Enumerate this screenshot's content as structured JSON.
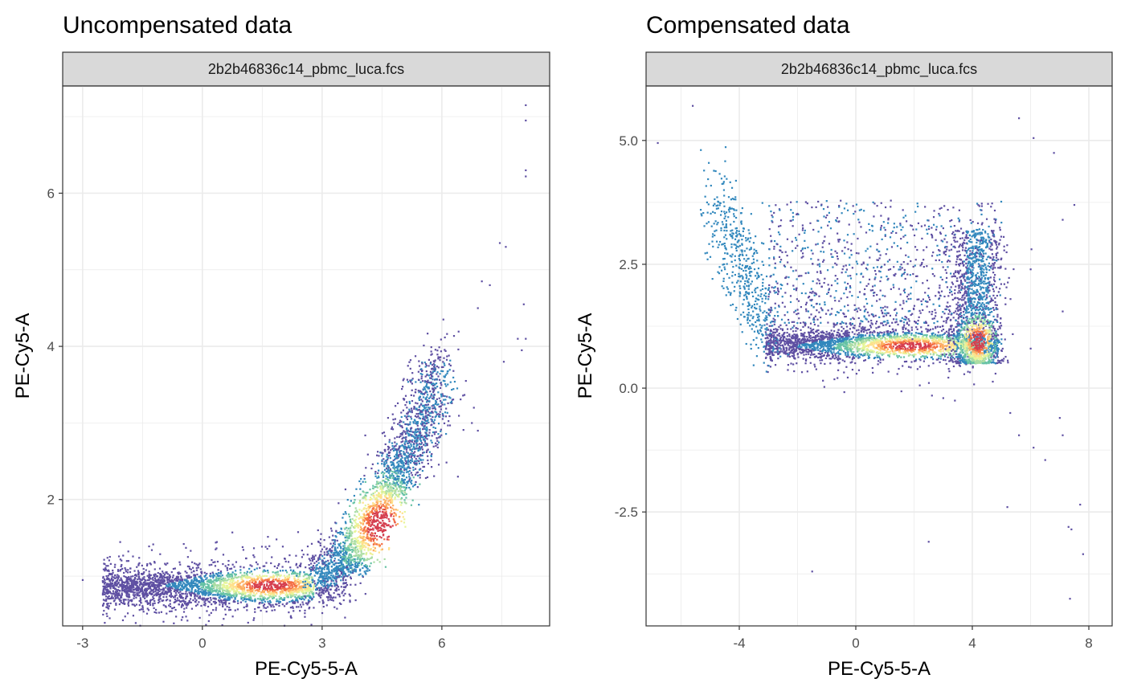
{
  "chart_data": [
    {
      "type": "scatter",
      "title": "Uncompensated data",
      "facet_label": "2b2b46836c14_pbmc_luca.fcs",
      "xlabel": "PE-Cy5-5-A",
      "ylabel": "PE-Cy5-A",
      "xlim": [
        -3.5,
        8.7
      ],
      "ylim": [
        0.35,
        7.4
      ],
      "x_ticks": [
        -3,
        0,
        3,
        6
      ],
      "x_tick_labels": [
        "-3",
        "0",
        "3",
        "6"
      ],
      "y_ticks": [
        2,
        4,
        6
      ],
      "y_tick_labels": [
        "2",
        "4",
        "6"
      ],
      "grid": true,
      "density_scale": "Spectral (purple = low, red = high)",
      "colors": [
        "#5e4fa2",
        "#3288bd",
        "#66c2a5",
        "#abdda4",
        "#e6f598",
        "#fee08b",
        "#fdae61",
        "#f46d43",
        "#d53e4f"
      ],
      "populations": [
        {
          "name": "horizontal band",
          "x_range": [
            -2.5,
            2.8
          ],
          "y_center": 0.85,
          "y_spread": 0.12,
          "peak": [
            1.7,
            0.88
          ]
        },
        {
          "name": "diagonal arm",
          "x_range": [
            2.8,
            6.0
          ],
          "y_at_start": 0.95,
          "y_at_end": 3.7,
          "peak": [
            4.5,
            1.65
          ]
        }
      ],
      "outliers": [
        {
          "x": 8.1,
          "y": 7.15
        },
        {
          "x": 8.1,
          "y": 6.95
        },
        {
          "x": 8.1,
          "y": 6.3
        },
        {
          "x": 8.1,
          "y": 6.22
        },
        {
          "x": 7.45,
          "y": 5.35
        },
        {
          "x": 7.6,
          "y": 5.3
        },
        {
          "x": 7.0,
          "y": 4.85
        },
        {
          "x": 7.2,
          "y": 4.8
        },
        {
          "x": 8.05,
          "y": 4.55
        },
        {
          "x": 6.9,
          "y": 4.5
        },
        {
          "x": 7.9,
          "y": 4.1
        },
        {
          "x": 8.1,
          "y": 4.1
        },
        {
          "x": 7.55,
          "y": 3.8
        },
        {
          "x": 8.0,
          "y": 3.95
        },
        {
          "x": 6.6,
          "y": 3.55
        },
        {
          "x": 6.8,
          "y": 3.2
        },
        {
          "x": 6.9,
          "y": 2.9
        },
        {
          "x": 6.4,
          "y": 2.3
        },
        {
          "x": 6.75,
          "y": 3.0
        },
        {
          "x": -3.0,
          "y": 0.95
        }
      ]
    },
    {
      "type": "scatter",
      "title": "Compensated data",
      "facet_label": "2b2b46836c14_pbmc_luca.fcs",
      "xlabel": "PE-Cy5-5-A",
      "ylabel": "PE-Cy5-A",
      "xlim": [
        -7.2,
        8.8
      ],
      "ylim": [
        -4.8,
        6.1
      ],
      "x_ticks": [
        -4,
        0,
        4,
        8
      ],
      "x_tick_labels": [
        "-4",
        "0",
        "4",
        "8"
      ],
      "y_ticks": [
        -2.5,
        0.0,
        2.5,
        5.0
      ],
      "y_tick_labels": [
        "-2.5",
        "0.0",
        "2.5",
        "5.0"
      ],
      "grid": true,
      "density_scale": "Spectral (purple = low, red = high)",
      "colors": [
        "#5e4fa2",
        "#3288bd",
        "#66c2a5",
        "#abdda4",
        "#e6f598",
        "#fee08b",
        "#fdae61",
        "#f46d43",
        "#d53e4f"
      ],
      "populations": [
        {
          "name": "horizontal band",
          "x_range": [
            -3.1,
            4.9
          ],
          "y_center": 0.9,
          "y_spread": 0.15,
          "peak": [
            1.9,
            0.85
          ]
        },
        {
          "name": "vertical arm",
          "x_center": 4.1,
          "y_range": [
            0.5,
            3.2
          ],
          "peak": [
            4.2,
            0.95
          ]
        },
        {
          "name": "upper-left diagonal",
          "x_range": [
            -4.8,
            -3.0
          ],
          "y_at_start": 3.8,
          "y_at_end": 1.2
        },
        {
          "name": "sparse upper cloud",
          "x_range": [
            -3.0,
            5.0
          ],
          "y_range": [
            1.3,
            3.8
          ]
        }
      ],
      "outliers": [
        {
          "x": -6.8,
          "y": 4.95
        },
        {
          "x": -5.6,
          "y": 5.7
        },
        {
          "x": 5.6,
          "y": 5.45
        },
        {
          "x": 6.1,
          "y": 5.05
        },
        {
          "x": 6.8,
          "y": 4.75
        },
        {
          "x": 7.5,
          "y": 3.7
        },
        {
          "x": 7.1,
          "y": 3.4
        },
        {
          "x": 6.0,
          "y": 2.4
        },
        {
          "x": 7.1,
          "y": 1.55
        },
        {
          "x": 6.0,
          "y": 0.8
        },
        {
          "x": 5.6,
          "y": -0.95
        },
        {
          "x": 6.1,
          "y": -1.2
        },
        {
          "x": 6.5,
          "y": -1.45
        },
        {
          "x": 7.0,
          "y": -0.6
        },
        {
          "x": 7.1,
          "y": -0.95
        },
        {
          "x": 5.2,
          "y": -2.4
        },
        {
          "x": 7.7,
          "y": -2.35
        },
        {
          "x": 7.3,
          "y": -2.8
        },
        {
          "x": 7.4,
          "y": -2.85
        },
        {
          "x": 7.8,
          "y": -3.35
        },
        {
          "x": 7.35,
          "y": -4.25
        },
        {
          "x": -1.5,
          "y": -3.7
        },
        {
          "x": 2.5,
          "y": -3.1
        },
        {
          "x": 5.3,
          "y": -0.5
        },
        {
          "x": 3.0,
          "y": -0.2
        },
        {
          "x": 3.4,
          "y": -0.25
        }
      ]
    }
  ]
}
